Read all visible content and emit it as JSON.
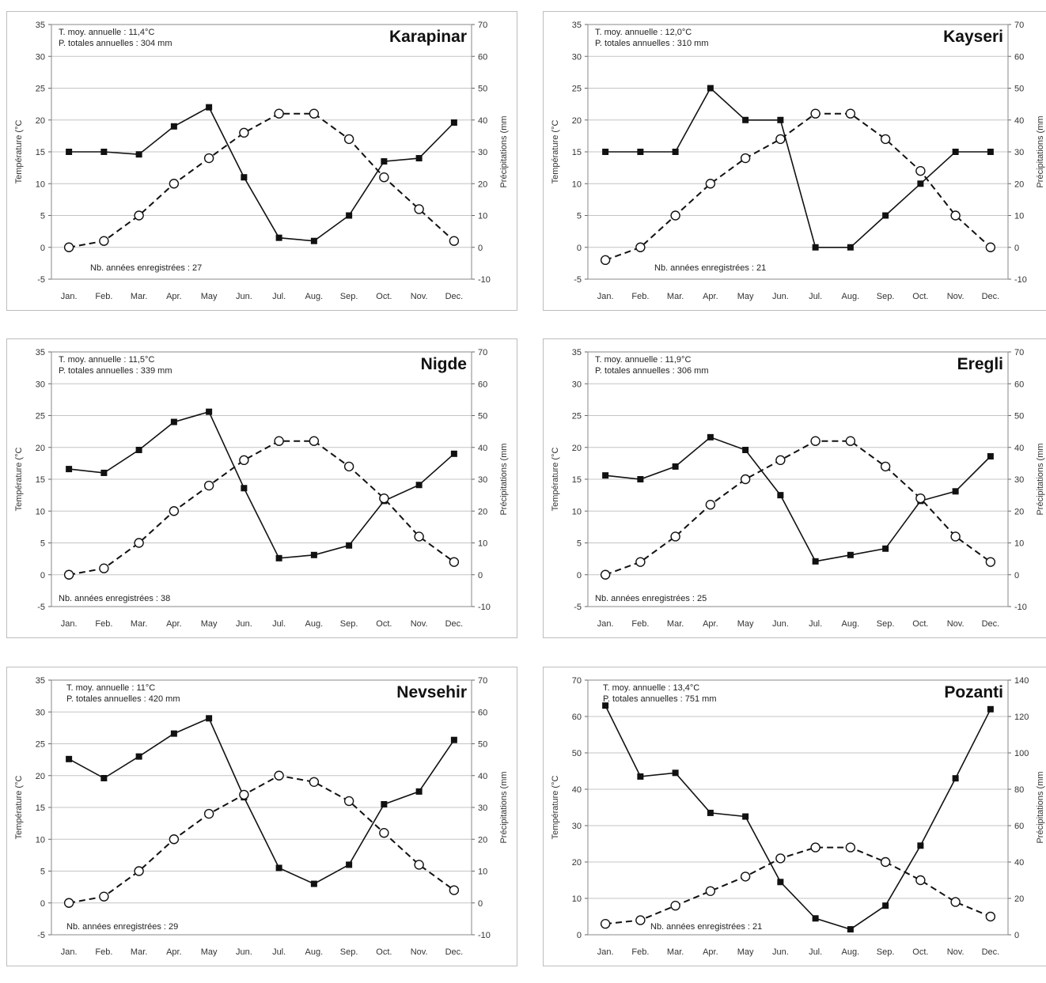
{
  "chart_data": [
    {
      "type": "line",
      "title": "Karapinar",
      "annotations": [
        "T. moy. annuelle : 11,4°C",
        "P. totales annuelles : 304 mm",
        "Nb. années enregistrées : 27"
      ],
      "ylabel": "Température (°C",
      "y2label": "Précipitations (mm",
      "categories": [
        "Jan.",
        "Feb.",
        "Mar.",
        "Apr.",
        "May",
        "Jun.",
        "Jul.",
        "Aug.",
        "Sep.",
        "Oct.",
        "Nov.",
        "Dec."
      ],
      "ylim": [
        -5,
        35
      ],
      "y2lim": [
        -10,
        70
      ],
      "yticks": [
        -5,
        0,
        5,
        10,
        15,
        20,
        25,
        30,
        35
      ],
      "y2ticks": [
        -10,
        0,
        10,
        20,
        30,
        40,
        50,
        60,
        70
      ],
      "grid": true,
      "series": [
        {
          "axis": "left",
          "style": "solid-filled-square",
          "values": [
            15,
            15,
            14.6,
            19,
            22,
            11,
            1.5,
            1,
            5,
            13.5,
            14,
            19.6
          ]
        },
        {
          "axis": "left",
          "style": "dashed-open-circle",
          "values": [
            0,
            1,
            5,
            10,
            14,
            18,
            21,
            21,
            17,
            11,
            6,
            1
          ]
        }
      ]
    },
    {
      "type": "line",
      "title": "Kayseri",
      "annotations": [
        "T. moy. annuelle : 12,0°C",
        "P. totales annuelles : 310 mm",
        "Nb. années enregistrées : 21"
      ],
      "ylabel": "Température (°C",
      "y2label": "Précipitations (mm",
      "categories": [
        "Jan.",
        "Feb.",
        "Mar.",
        "Apr.",
        "May",
        "Jun.",
        "Jul.",
        "Aug.",
        "Sep.",
        "Oct.",
        "Nov.",
        "Dec."
      ],
      "ylim": [
        -5,
        35
      ],
      "y2lim": [
        -10,
        70
      ],
      "yticks": [
        -5,
        0,
        5,
        10,
        15,
        20,
        25,
        30,
        35
      ],
      "y2ticks": [
        -10,
        0,
        10,
        20,
        30,
        40,
        50,
        60,
        70
      ],
      "grid": true,
      "series": [
        {
          "axis": "left",
          "style": "solid-filled-square",
          "values": [
            15,
            15,
            15,
            25,
            20,
            20,
            0,
            0,
            5,
            10,
            15,
            15
          ]
        },
        {
          "axis": "left",
          "style": "dashed-open-circle",
          "values": [
            -2,
            0,
            5,
            10,
            14,
            17,
            21,
            21,
            17,
            12,
            5,
            0
          ]
        }
      ]
    },
    {
      "type": "line",
      "title": "Nigde",
      "annotations": [
        "T. moy. annuelle : 11,5°C",
        "P. totales annuelles : 339 mm",
        "Nb. années enregistrées : 38"
      ],
      "ylabel": "Température (°C",
      "y2label": "Précipitations (mm",
      "categories": [
        "Jan.",
        "Feb.",
        "Mar.",
        "Apr.",
        "May",
        "Jun.",
        "Jul.",
        "Aug.",
        "Sep.",
        "Oct.",
        "Nov.",
        "Dec."
      ],
      "ylim": [
        -5,
        35
      ],
      "y2lim": [
        -10,
        70
      ],
      "yticks": [
        -5,
        0,
        5,
        10,
        15,
        20,
        25,
        30,
        35
      ],
      "y2ticks": [
        -10,
        0,
        10,
        20,
        30,
        40,
        50,
        60,
        70
      ],
      "grid": true,
      "series": [
        {
          "axis": "left",
          "style": "solid-filled-square",
          "values": [
            16.6,
            16,
            19.6,
            24,
            25.6,
            13.6,
            2.6,
            3.1,
            4.6,
            11.6,
            14.1,
            19
          ]
        },
        {
          "axis": "left",
          "style": "dashed-open-circle",
          "values": [
            0,
            1,
            5,
            10,
            14,
            18,
            21,
            21,
            17,
            12,
            6,
            2
          ]
        }
      ]
    },
    {
      "type": "line",
      "title": "Eregli",
      "annotations": [
        "T. moy. annuelle : 11,9°C",
        "P. totales annuelles : 306 mm",
        "Nb. années enregistrées : 25"
      ],
      "ylabel": "Température (°C",
      "y2label": "Précipitations (mm",
      "categories": [
        "Jan.",
        "Feb.",
        "Mar.",
        "Apr.",
        "May",
        "Jun.",
        "Jul.",
        "Aug.",
        "Sep.",
        "Oct.",
        "Nov.",
        "Dec."
      ],
      "ylim": [
        -5,
        35
      ],
      "y2lim": [
        -10,
        70
      ],
      "yticks": [
        -5,
        0,
        5,
        10,
        15,
        20,
        25,
        30,
        35
      ],
      "y2ticks": [
        -10,
        0,
        10,
        20,
        30,
        40,
        50,
        60,
        70
      ],
      "grid": true,
      "series": [
        {
          "axis": "left",
          "style": "solid-filled-square",
          "values": [
            15.6,
            15,
            17,
            21.6,
            19.6,
            12.5,
            2.1,
            3.1,
            4.1,
            11.6,
            13.1,
            18.6
          ]
        },
        {
          "axis": "left",
          "style": "dashed-open-circle",
          "values": [
            0,
            2,
            6,
            11,
            15,
            18,
            21,
            21,
            17,
            12,
            6,
            2
          ]
        }
      ]
    },
    {
      "type": "line",
      "title": "Nevsehir",
      "annotations": [
        "T. moy. annuelle : 11°C",
        "P. totales annuelles : 420 mm",
        "Nb. années enregistrées : 29"
      ],
      "ylabel": "Température (°C",
      "y2label": "Précipitations (mm",
      "categories": [
        "Jan.",
        "Feb.",
        "Mar.",
        "Apr.",
        "May",
        "Jun.",
        "Jul.",
        "Aug.",
        "Sep.",
        "Oct.",
        "Nov.",
        "Dec."
      ],
      "ylim": [
        -5,
        35
      ],
      "y2lim": [
        -10,
        70
      ],
      "yticks": [
        -5,
        0,
        5,
        10,
        15,
        20,
        25,
        30,
        35
      ],
      "y2ticks": [
        -10,
        0,
        10,
        20,
        30,
        40,
        50,
        60,
        70
      ],
      "grid": true,
      "series": [
        {
          "axis": "left",
          "style": "solid-filled-square",
          "values": [
            22.6,
            19.6,
            23,
            26.6,
            29,
            16.6,
            5.5,
            3,
            6,
            15.5,
            17.5,
            25.6
          ]
        },
        {
          "axis": "left",
          "style": "dashed-open-circle",
          "values": [
            0,
            1,
            5,
            10,
            14,
            17,
            20,
            19,
            16,
            11,
            6,
            2
          ]
        }
      ]
    },
    {
      "type": "line",
      "title": "Pozanti",
      "annotations": [
        "T. moy. annuelle : 13,4°C",
        "P. totales annuelles : 751 mm",
        "Nb. années enregistrées : 21"
      ],
      "ylabel": "Température (°C",
      "y2label": "Précipitations (mm",
      "categories": [
        "Jan.",
        "Feb.",
        "Mar.",
        "Apr.",
        "May",
        "Jun.",
        "Jul.",
        "Aug.",
        "Sep.",
        "Oct.",
        "Nov.",
        "Dec."
      ],
      "ylim": [
        0,
        70
      ],
      "y2lim": [
        0,
        140
      ],
      "yticks": [
        0,
        10,
        20,
        30,
        40,
        50,
        60,
        70
      ],
      "y2ticks": [
        0,
        20,
        40,
        60,
        80,
        100,
        120,
        140
      ],
      "grid": true,
      "series": [
        {
          "axis": "left",
          "style": "solid-filled-square",
          "values": [
            63,
            43.5,
            44.5,
            33.5,
            32.5,
            14.5,
            4.5,
            1.5,
            8,
            24.5,
            43,
            62
          ]
        },
        {
          "axis": "left",
          "style": "dashed-open-circle",
          "values": [
            3,
            4,
            8,
            12,
            16,
            21,
            24,
            24,
            20,
            15,
            9,
            5
          ]
        }
      ]
    }
  ]
}
